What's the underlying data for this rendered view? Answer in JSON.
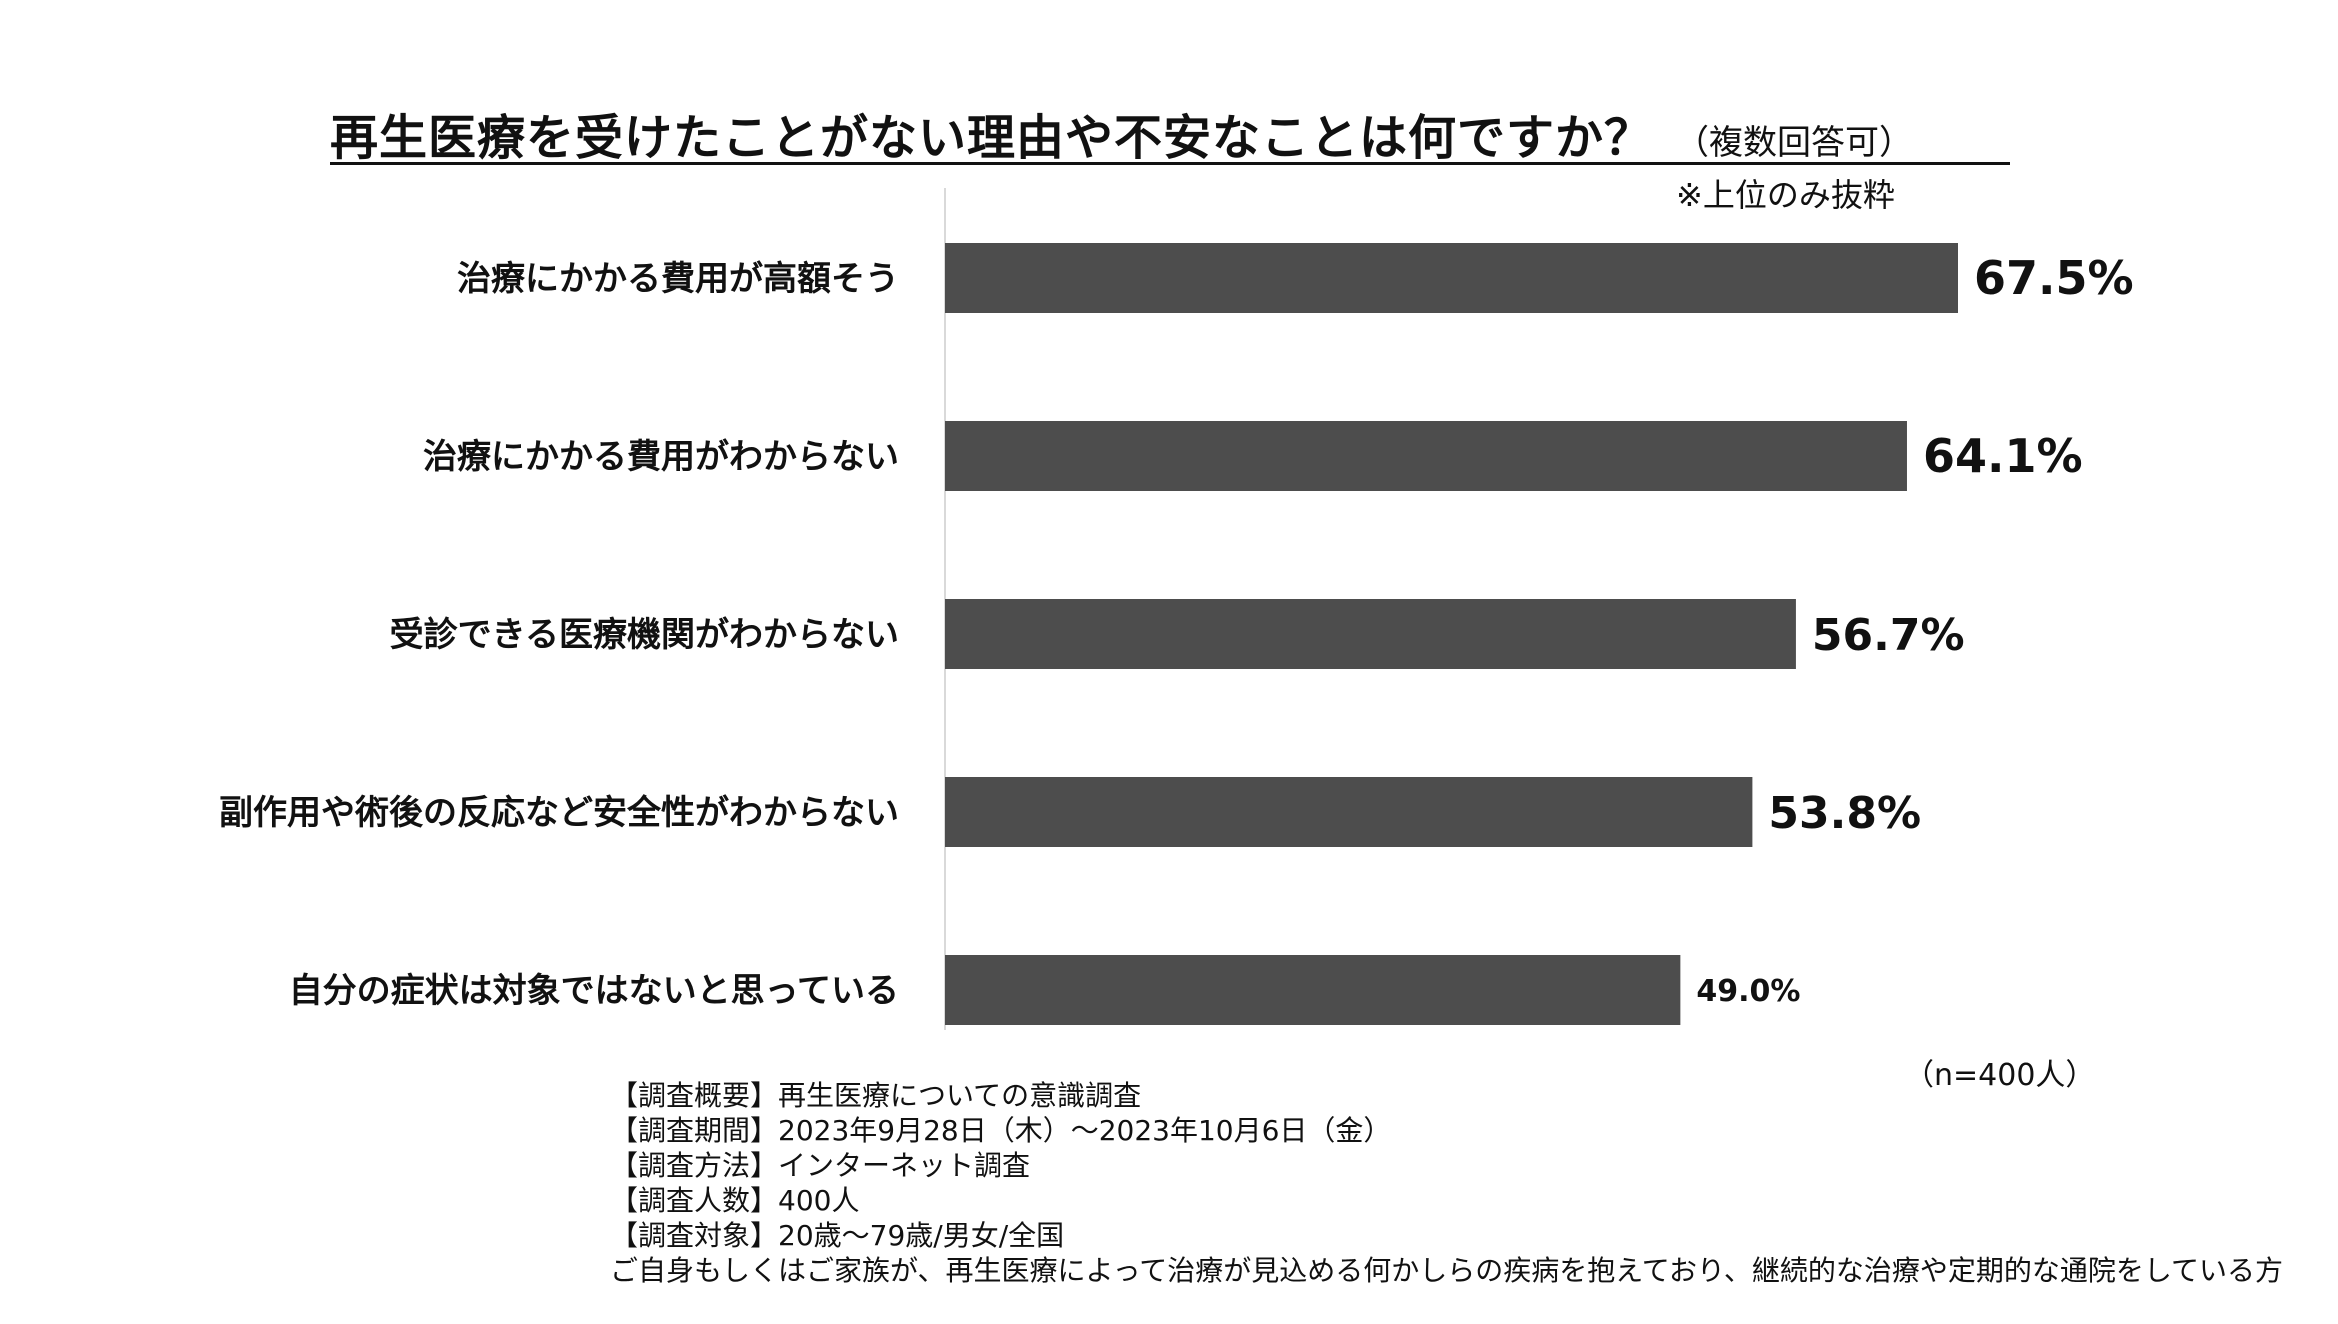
{
  "title": {
    "main": "再生医療を受けたことがない理由や不安なことは何ですか？",
    "sub": "（複数回答可）"
  },
  "note": "※上位のみ抜粋",
  "sample_size": "（n=400人）",
  "footer": {
    "lines": [
      "【調査概要】再生医療についての意識調査",
      "【調査期間】2023年9月28日（木）～2023年10月6日（金）",
      "【調査方法】インターネット調査",
      "【調査人数】400人",
      "【調査対象】20歳～79歳/男女/全国",
      "ご自身もしくはご家族が、再生医療によって治療が見込める何かしらの疾病を抱えており、継続的な治療や定期的な通院をしている方"
    ]
  },
  "chart_data": {
    "type": "bar",
    "orientation": "horizontal",
    "title": "再生医療を受けたことがない理由や不安なことは何ですか？",
    "categories": [
      "治療にかかる費用が高額そう",
      "治療にかかる費用がわからない",
      "受診できる医療機関がわからない",
      "副作用や術後の反応など安全性がわからない",
      "自分の症状は対象ではないと思っている"
    ],
    "values": [
      67.5,
      64.1,
      56.7,
      53.8,
      49.0
    ],
    "data_labels": [
      "67.5%",
      "64.1%",
      "56.7%",
      "53.8%",
      "49.0%"
    ],
    "unit": "%",
    "xlim": [
      0,
      100
    ],
    "grid": false,
    "legend": "none",
    "bar_color": "#4d4d4d",
    "axis_color": "#d9d9d9"
  }
}
